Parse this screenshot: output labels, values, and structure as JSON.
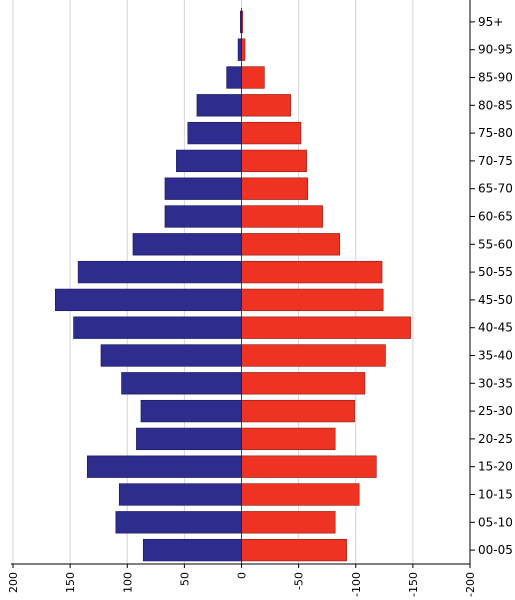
{
  "chart_data": {
    "type": "bar",
    "orientation": "horizontal-pyramid",
    "categories": [
      "95+",
      "90-95",
      "85-90",
      "80-85",
      "75-80",
      "70-75",
      "65-70",
      "60-65",
      "55-60",
      "50-55",
      "45-50",
      "40-45",
      "35-40",
      "30-35",
      "25-30",
      "20-25",
      "15-20",
      "10-15",
      "05-10",
      "00-05"
    ],
    "series": [
      {
        "color": "#2e2c8c",
        "values": [
          1,
          3,
          13,
          39,
          47,
          57,
          67,
          67,
          95,
          143,
          163,
          147,
          123,
          105,
          88,
          92,
          135,
          107,
          110,
          86
        ]
      },
      {
        "color": "#ee3322",
        "values": [
          1,
          3,
          20,
          43,
          52,
          57,
          58,
          71,
          86,
          123,
          124,
          148,
          126,
          108,
          99,
          82,
          118,
          103,
          82,
          92
        ]
      }
    ],
    "x_ticks": [
      "200",
      "150",
      "100",
      "50",
      "0",
      "-50",
      "-100",
      "-150",
      "-200"
    ],
    "xlim": [
      -200,
      200
    ],
    "grid": true
  }
}
